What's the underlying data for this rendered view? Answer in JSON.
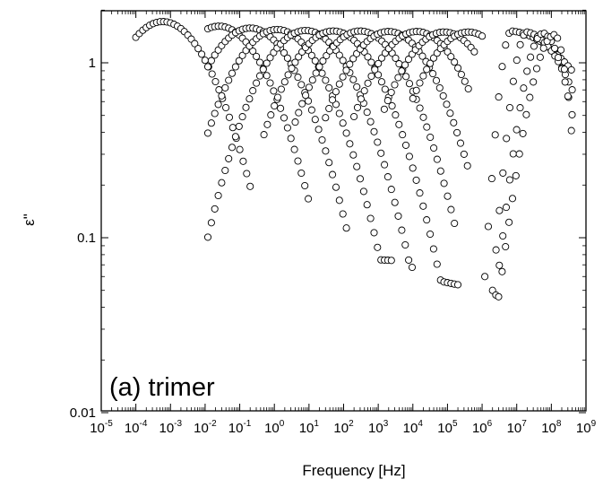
{
  "chart_data": {
    "type": "scatter",
    "title": "",
    "xlabel": "Frequency [Hz]",
    "ylabel": "ε\"",
    "xscale": "log",
    "yscale": "log",
    "xlim": [
      1e-05,
      1000000000.0
    ],
    "ylim": [
      0.01,
      2
    ],
    "grid": false,
    "legend": "none",
    "annotation": "(a) trimer",
    "marker": "open-circle",
    "x_ticks": [
      {
        "base": "10",
        "exp": "-5",
        "value": 1e-05
      },
      {
        "base": "10",
        "exp": "-4",
        "value": 0.0001
      },
      {
        "base": "10",
        "exp": "-3",
        "value": 0.001
      },
      {
        "base": "10",
        "exp": "-2",
        "value": 0.01
      },
      {
        "base": "10",
        "exp": "-1",
        "value": 0.1
      },
      {
        "base": "10",
        "exp": "0",
        "value": 1.0
      },
      {
        "base": "10",
        "exp": "1",
        "value": 10.0
      },
      {
        "base": "10",
        "exp": "2",
        "value": 100.0
      },
      {
        "base": "10",
        "exp": "3",
        "value": 1000.0
      },
      {
        "base": "10",
        "exp": "4",
        "value": 10000.0
      },
      {
        "base": "10",
        "exp": "5",
        "value": 100000.0
      },
      {
        "base": "10",
        "exp": "6",
        "value": 1000000.0
      },
      {
        "base": "10",
        "exp": "7",
        "value": 10000000.0
      },
      {
        "base": "10",
        "exp": "8",
        "value": 100000000.0
      },
      {
        "base": "10",
        "exp": "9",
        "value": 1000000000.0
      }
    ],
    "y_ticks": [
      {
        "label": "0.01",
        "value": 0.01
      },
      {
        "label": "0.1",
        "value": 0.1
      },
      {
        "label": "1",
        "value": 1
      }
    ],
    "series": [
      {
        "x_start": 0.0001,
        "x_end": 0.2,
        "peak_freq": 0.0006,
        "peak_value": 1.72,
        "hf_floor": 0.12,
        "floor_slope": 0
      },
      {
        "x_start": 0.012,
        "x_end": 10,
        "peak_freq": 0.025,
        "peak_value": 1.62,
        "hf_floor": 0.1,
        "floor_slope": 0
      },
      {
        "x_start": 0.012,
        "x_end": 120,
        "peak_freq": 0.2,
        "peak_value": 1.58,
        "hf_floor": 0.09,
        "floor_slope": 0
      },
      {
        "x_start": 0.012,
        "x_end": 3000,
        "peak_freq": 1.2,
        "peak_value": 1.55,
        "hf_floor": 0.08,
        "floor_slope": -0.01
      },
      {
        "x_start": 0.012,
        "x_end": 10000.0,
        "peak_freq": 8,
        "peak_value": 1.53,
        "hf_floor": 0.078,
        "floor_slope": -0.02
      },
      {
        "x_start": 0.5,
        "x_end": 200000.0,
        "peak_freq": 50,
        "peak_value": 1.52,
        "hf_floor": 0.075,
        "floor_slope": -0.04
      },
      {
        "x_start": 4,
        "x_end": 200000.0,
        "peak_freq": 300,
        "peak_value": 1.52,
        "hf_floor": 0.072,
        "floor_slope": -0.06
      },
      {
        "x_start": 30,
        "x_end": 400000.0,
        "peak_freq": 2000,
        "peak_value": 1.51,
        "hf_floor": 0.07,
        "floor_slope": -0.08
      },
      {
        "x_start": 200,
        "x_end": 400000.0,
        "peak_freq": 13000.0,
        "peak_value": 1.51,
        "hf_floor": 0.075,
        "floor_slope": -0.09
      },
      {
        "x_start": 1500,
        "x_end": 600000.0,
        "peak_freq": 80000.0,
        "peak_value": 1.5,
        "hf_floor": 0.08,
        "floor_slope": -0.1
      },
      {
        "x_start": 10000.0,
        "x_end": 1000000.0,
        "peak_freq": 400000.0,
        "peak_value": 1.5,
        "hf_floor": 0.085,
        "floor_slope": -0.1
      },
      {
        "x_start": 1200000.0,
        "x_end": 400000000.0,
        "peak_freq": 7000000.0,
        "peak_value": 1.52,
        "lf_start": 0.06,
        "hf_end": 0.9
      },
      {
        "x_start": 2000000.0,
        "x_end": 400000000.0,
        "peak_freq": 20000000.0,
        "peak_value": 1.5,
        "lf_start": 0.05,
        "hf_end": 0.7
      },
      {
        "x_start": 2500000.0,
        "x_end": 400000000.0,
        "peak_freq": 60000000.0,
        "peak_value": 1.48,
        "lf_start": 0.047,
        "hf_end": 0.5
      },
      {
        "x_start": 3000000.0,
        "x_end": 400000000.0,
        "peak_freq": 130000000.0,
        "peak_value": 1.45,
        "lf_start": 0.046,
        "hf_end": 0.36
      }
    ]
  }
}
